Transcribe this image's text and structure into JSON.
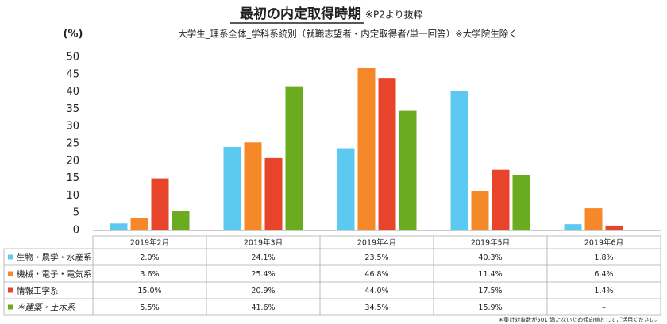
{
  "chart_data": {
    "type": "bar",
    "title": "最初の内定取得時期",
    "title_note": "※P2より抜粋",
    "subtitle": "大学生_理系全体_学科系統別（就職志望者・内定取得者/単一回答）※大学院生除く",
    "y_label": "(%)",
    "categories": [
      "2019年2月",
      "2019年3月",
      "2019年4月",
      "2019年5月",
      "2019年6月"
    ],
    "series": [
      {
        "name": "生物・農学・水産系",
        "color": "#5bc9f0",
        "values": [
          2.0,
          24.1,
          23.5,
          40.3,
          1.8
        ],
        "value_labels": [
          "2.0%",
          "24.1%",
          "23.5%",
          "40.3%",
          "1.8%"
        ]
      },
      {
        "name": "機械・電子・電気系",
        "color": "#f5892a",
        "values": [
          3.6,
          25.4,
          46.8,
          11.4,
          6.4
        ],
        "value_labels": [
          "3.6%",
          "25.4%",
          "46.8%",
          "11.4%",
          "6.4%"
        ]
      },
      {
        "name": "情報工学系",
        "color": "#e8432b",
        "values": [
          15.0,
          20.9,
          44.0,
          17.5,
          1.4
        ],
        "value_labels": [
          "15.0%",
          "20.9%",
          "44.0%",
          "17.5%",
          "1.4%"
        ]
      },
      {
        "name": "＊建築・土木系",
        "color": "#6aab1f",
        "values": [
          5.5,
          41.6,
          34.5,
          15.9,
          null
        ],
        "value_labels": [
          "5.5%",
          "41.6%",
          "34.5%",
          "15.9%",
          "–"
        ]
      }
    ],
    "ylim": [
      0,
      50
    ],
    "yticks": [
      0,
      5,
      10,
      15,
      20,
      25,
      30,
      35,
      40,
      45,
      50
    ],
    "grid": false,
    "footnote": "＊集計対象数が50に満たないため傾向値としてご活用ください。"
  }
}
